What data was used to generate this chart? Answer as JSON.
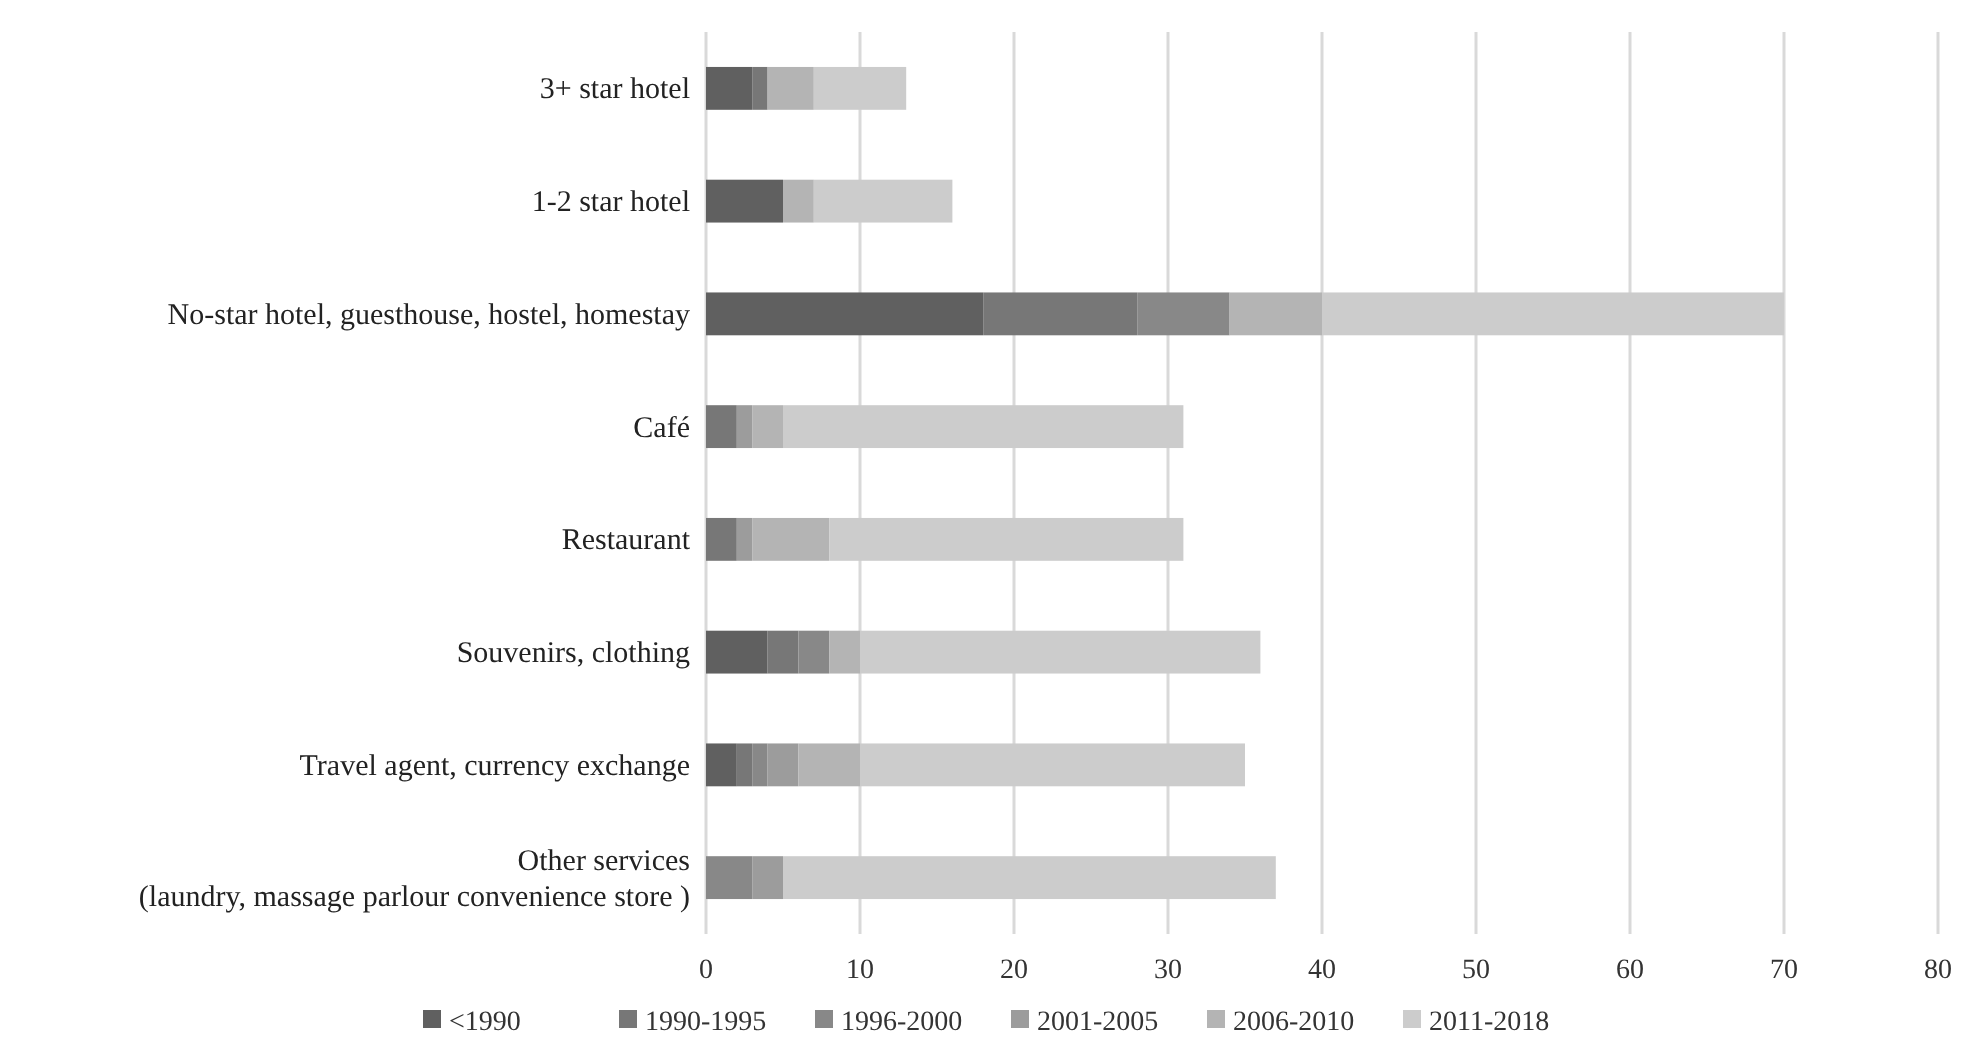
{
  "chart_data": {
    "type": "bar",
    "orientation": "horizontal",
    "stacked": true,
    "categories": [
      "3+ star hotel",
      "1-2 star hotel",
      "No-star hotel, guesthouse, hostel, homestay",
      "Café",
      "Restaurant",
      "Souvenirs, clothing",
      "Travel agent, currency exchange",
      "Other services\n(laundry, massage parlour convenience store )"
    ],
    "series": [
      {
        "name": "<1990",
        "color": "#606060",
        "values": [
          3,
          5,
          18,
          0,
          0,
          4,
          2,
          0
        ]
      },
      {
        "name": "1990-1995",
        "color": "#777777",
        "values": [
          1,
          0,
          10,
          2,
          2,
          2,
          1,
          0
        ]
      },
      {
        "name": "1996-2000",
        "color": "#888888",
        "values": [
          0,
          0,
          6,
          0,
          0,
          2,
          1,
          3
        ]
      },
      {
        "name": "2001-2005",
        "color": "#9c9c9c",
        "values": [
          0,
          0,
          0,
          1,
          1,
          0,
          2,
          2
        ]
      },
      {
        "name": "2006-2010",
        "color": "#b4b4b4",
        "values": [
          3,
          2,
          6,
          2,
          5,
          2,
          4,
          0
        ]
      },
      {
        "name": "2011-2018",
        "color": "#cccccc",
        "values": [
          6,
          9,
          30,
          26,
          23,
          26,
          25,
          32
        ]
      }
    ],
    "xlim": [
      0,
      80
    ],
    "xticks": [
      0,
      10,
      20,
      30,
      40,
      50,
      60,
      70,
      80
    ],
    "grid": "x",
    "legend": "bottom"
  }
}
